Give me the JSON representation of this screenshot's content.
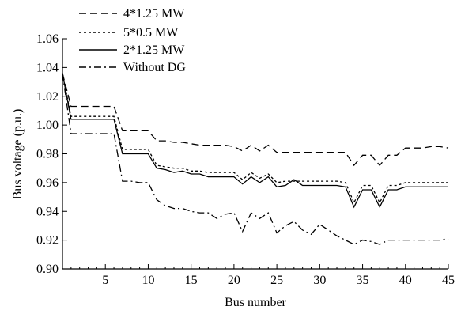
{
  "chart_data": {
    "type": "line",
    "title": "",
    "xlabel": "Bus number",
    "ylabel": "Bus voltage (p.u.)",
    "xlim": [
      0,
      45
    ],
    "ylim": [
      0.9,
      1.06
    ],
    "xticks": [
      5,
      10,
      15,
      20,
      25,
      30,
      35,
      40,
      45
    ],
    "xtick_labels": [
      "5",
      "10",
      "15",
      "20",
      "25",
      "30",
      "35",
      "40",
      "45"
    ],
    "yticks": [
      0.9,
      0.92,
      0.94,
      0.96,
      0.98,
      1.0,
      1.02,
      1.04,
      1.06
    ],
    "ytick_labels": [
      "0.90",
      "0.92",
      "0.94",
      "0.96",
      "0.98",
      "1.00",
      "1.02",
      "1.04",
      "1.06"
    ],
    "grid": false,
    "legend_position": "top-left",
    "x": [
      0,
      1,
      2,
      3,
      4,
      5,
      6,
      7,
      8,
      9,
      10,
      11,
      12,
      13,
      14,
      15,
      16,
      17,
      18,
      19,
      20,
      21,
      22,
      23,
      24,
      25,
      26,
      27,
      28,
      29,
      30,
      31,
      32,
      33,
      34,
      35,
      36,
      37,
      38,
      39,
      40,
      41,
      42,
      43,
      44,
      45
    ],
    "series": [
      {
        "name": "4*1.25 MW",
        "style": "dashed",
        "color": "#000000",
        "values": [
          1.036,
          1.013,
          1.013,
          1.013,
          1.013,
          1.013,
          1.013,
          0.996,
          0.996,
          0.996,
          0.996,
          0.989,
          0.989,
          0.988,
          0.988,
          0.987,
          0.986,
          0.986,
          0.986,
          0.986,
          0.985,
          0.982,
          0.986,
          0.982,
          0.986,
          0.981,
          0.981,
          0.981,
          0.981,
          0.981,
          0.981,
          0.981,
          0.981,
          0.981,
          0.972,
          0.979,
          0.979,
          0.972,
          0.979,
          0.979,
          0.984,
          0.984,
          0.984,
          0.985,
          0.985,
          0.984
        ]
      },
      {
        "name": "5*0.5 MW",
        "style": "dotted",
        "color": "#000000",
        "values": [
          1.036,
          1.006,
          1.006,
          1.006,
          1.006,
          1.006,
          1.006,
          0.983,
          0.983,
          0.983,
          0.983,
          0.972,
          0.971,
          0.97,
          0.97,
          0.968,
          0.968,
          0.967,
          0.967,
          0.967,
          0.967,
          0.962,
          0.967,
          0.963,
          0.966,
          0.96,
          0.961,
          0.961,
          0.961,
          0.961,
          0.961,
          0.961,
          0.961,
          0.96,
          0.946,
          0.958,
          0.958,
          0.946,
          0.958,
          0.958,
          0.96,
          0.96,
          0.96,
          0.96,
          0.96,
          0.96
        ]
      },
      {
        "name": "2*1.25 MW",
        "style": "solid",
        "color": "#000000",
        "values": [
          1.036,
          1.004,
          1.004,
          1.004,
          1.004,
          1.004,
          1.004,
          0.98,
          0.98,
          0.98,
          0.98,
          0.97,
          0.969,
          0.967,
          0.968,
          0.966,
          0.966,
          0.964,
          0.964,
          0.964,
          0.964,
          0.959,
          0.964,
          0.96,
          0.964,
          0.957,
          0.958,
          0.962,
          0.958,
          0.958,
          0.958,
          0.958,
          0.958,
          0.957,
          0.943,
          0.955,
          0.955,
          0.943,
          0.955,
          0.955,
          0.957,
          0.957,
          0.957,
          0.957,
          0.957,
          0.957
        ]
      },
      {
        "name": "Without DG",
        "style": "dashdot",
        "color": "#000000",
        "values": [
          1.036,
          0.994,
          0.994,
          0.994,
          0.994,
          0.994,
          0.994,
          0.961,
          0.961,
          0.96,
          0.96,
          0.948,
          0.944,
          0.942,
          0.942,
          0.94,
          0.939,
          0.939,
          0.935,
          0.938,
          0.939,
          0.926,
          0.939,
          0.935,
          0.939,
          0.925,
          0.93,
          0.933,
          0.927,
          0.924,
          0.931,
          0.927,
          0.923,
          0.92,
          0.917,
          0.92,
          0.919,
          0.917,
          0.92,
          0.92,
          0.92,
          0.92,
          0.92,
          0.92,
          0.92,
          0.921
        ]
      }
    ]
  }
}
